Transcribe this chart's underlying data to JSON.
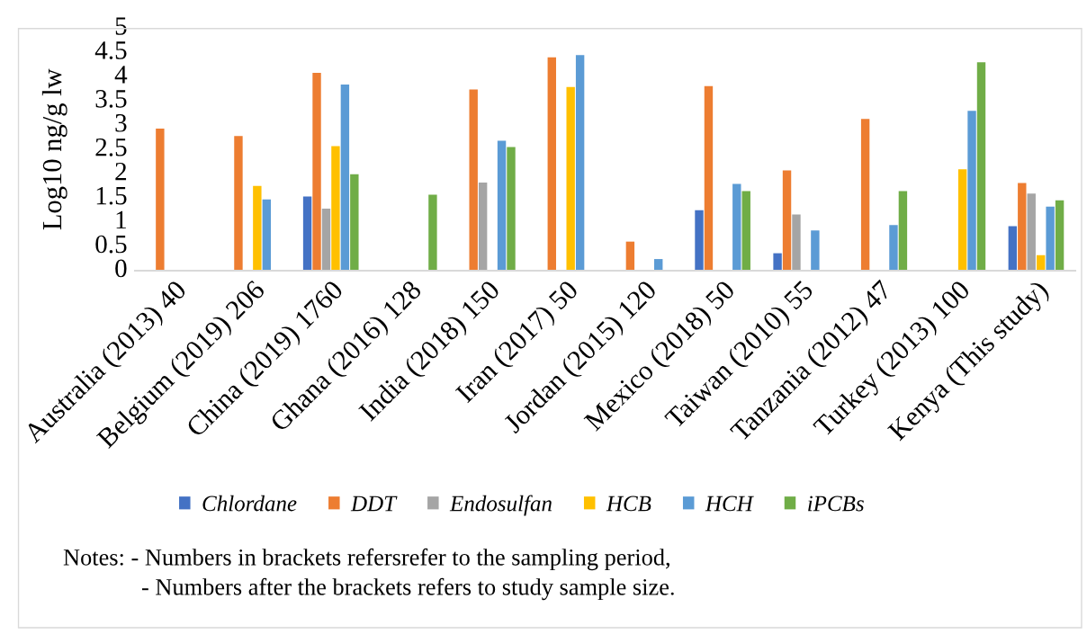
{
  "chart_data": {
    "type": "bar",
    "ylabel": "Log10 ng/g lw",
    "categories": [
      "Australia (2013) 40",
      "Belgium (2019) 206",
      "China (2019) 1760",
      "Ghana (2016) 128",
      "India (2018) 150",
      "Iran (2017) 50",
      "Jordan (2015) 120",
      "Mexico (2018) 50",
      "Taiwan (2010) 55",
      "Tanzania (2012) 47",
      "Turkey (2013) 100",
      "Kenya (This study)"
    ],
    "series": [
      {
        "name": "Chlordane",
        "color": "#4472c4",
        "values": [
          null,
          null,
          1.53,
          null,
          null,
          null,
          null,
          1.25,
          0.36,
          null,
          null,
          0.92
        ]
      },
      {
        "name": "DDT",
        "color": "#ed7d31",
        "values": [
          2.93,
          2.78,
          4.08,
          null,
          3.74,
          4.4,
          0.6,
          3.81,
          2.07,
          3.13,
          null,
          1.81
        ]
      },
      {
        "name": "Endosulfan",
        "color": "#a5a5a5",
        "values": [
          null,
          null,
          1.28,
          null,
          1.82,
          null,
          null,
          null,
          1.16,
          null,
          null,
          1.59
        ]
      },
      {
        "name": "HCB",
        "color": "#ffc000",
        "values": [
          null,
          1.75,
          2.57,
          null,
          null,
          3.79,
          null,
          null,
          null,
          null,
          2.09,
          0.32
        ]
      },
      {
        "name": "HCH",
        "color": "#5b9bd5",
        "values": [
          null,
          1.47,
          3.84,
          null,
          2.68,
          4.45,
          0.24,
          1.79,
          0.83,
          0.94,
          3.3,
          1.32
        ]
      },
      {
        "name": "iPCBs",
        "color": "#70ad47",
        "values": [
          null,
          null,
          1.99,
          1.57,
          2.55,
          null,
          null,
          1.64,
          null,
          1.64,
          4.3,
          1.45
        ]
      }
    ],
    "ylim": [
      0,
      5
    ],
    "yticks": [
      0,
      0.5,
      1,
      1.5,
      2,
      2.5,
      3,
      3.5,
      4,
      4.5,
      5
    ],
    "grid": false,
    "legend": "bottom",
    "annotations": [
      "Notes: - Numbers in brackets refersrefer to the sampling period,",
      "- Numbers after the brackets refers to study sample size."
    ]
  }
}
